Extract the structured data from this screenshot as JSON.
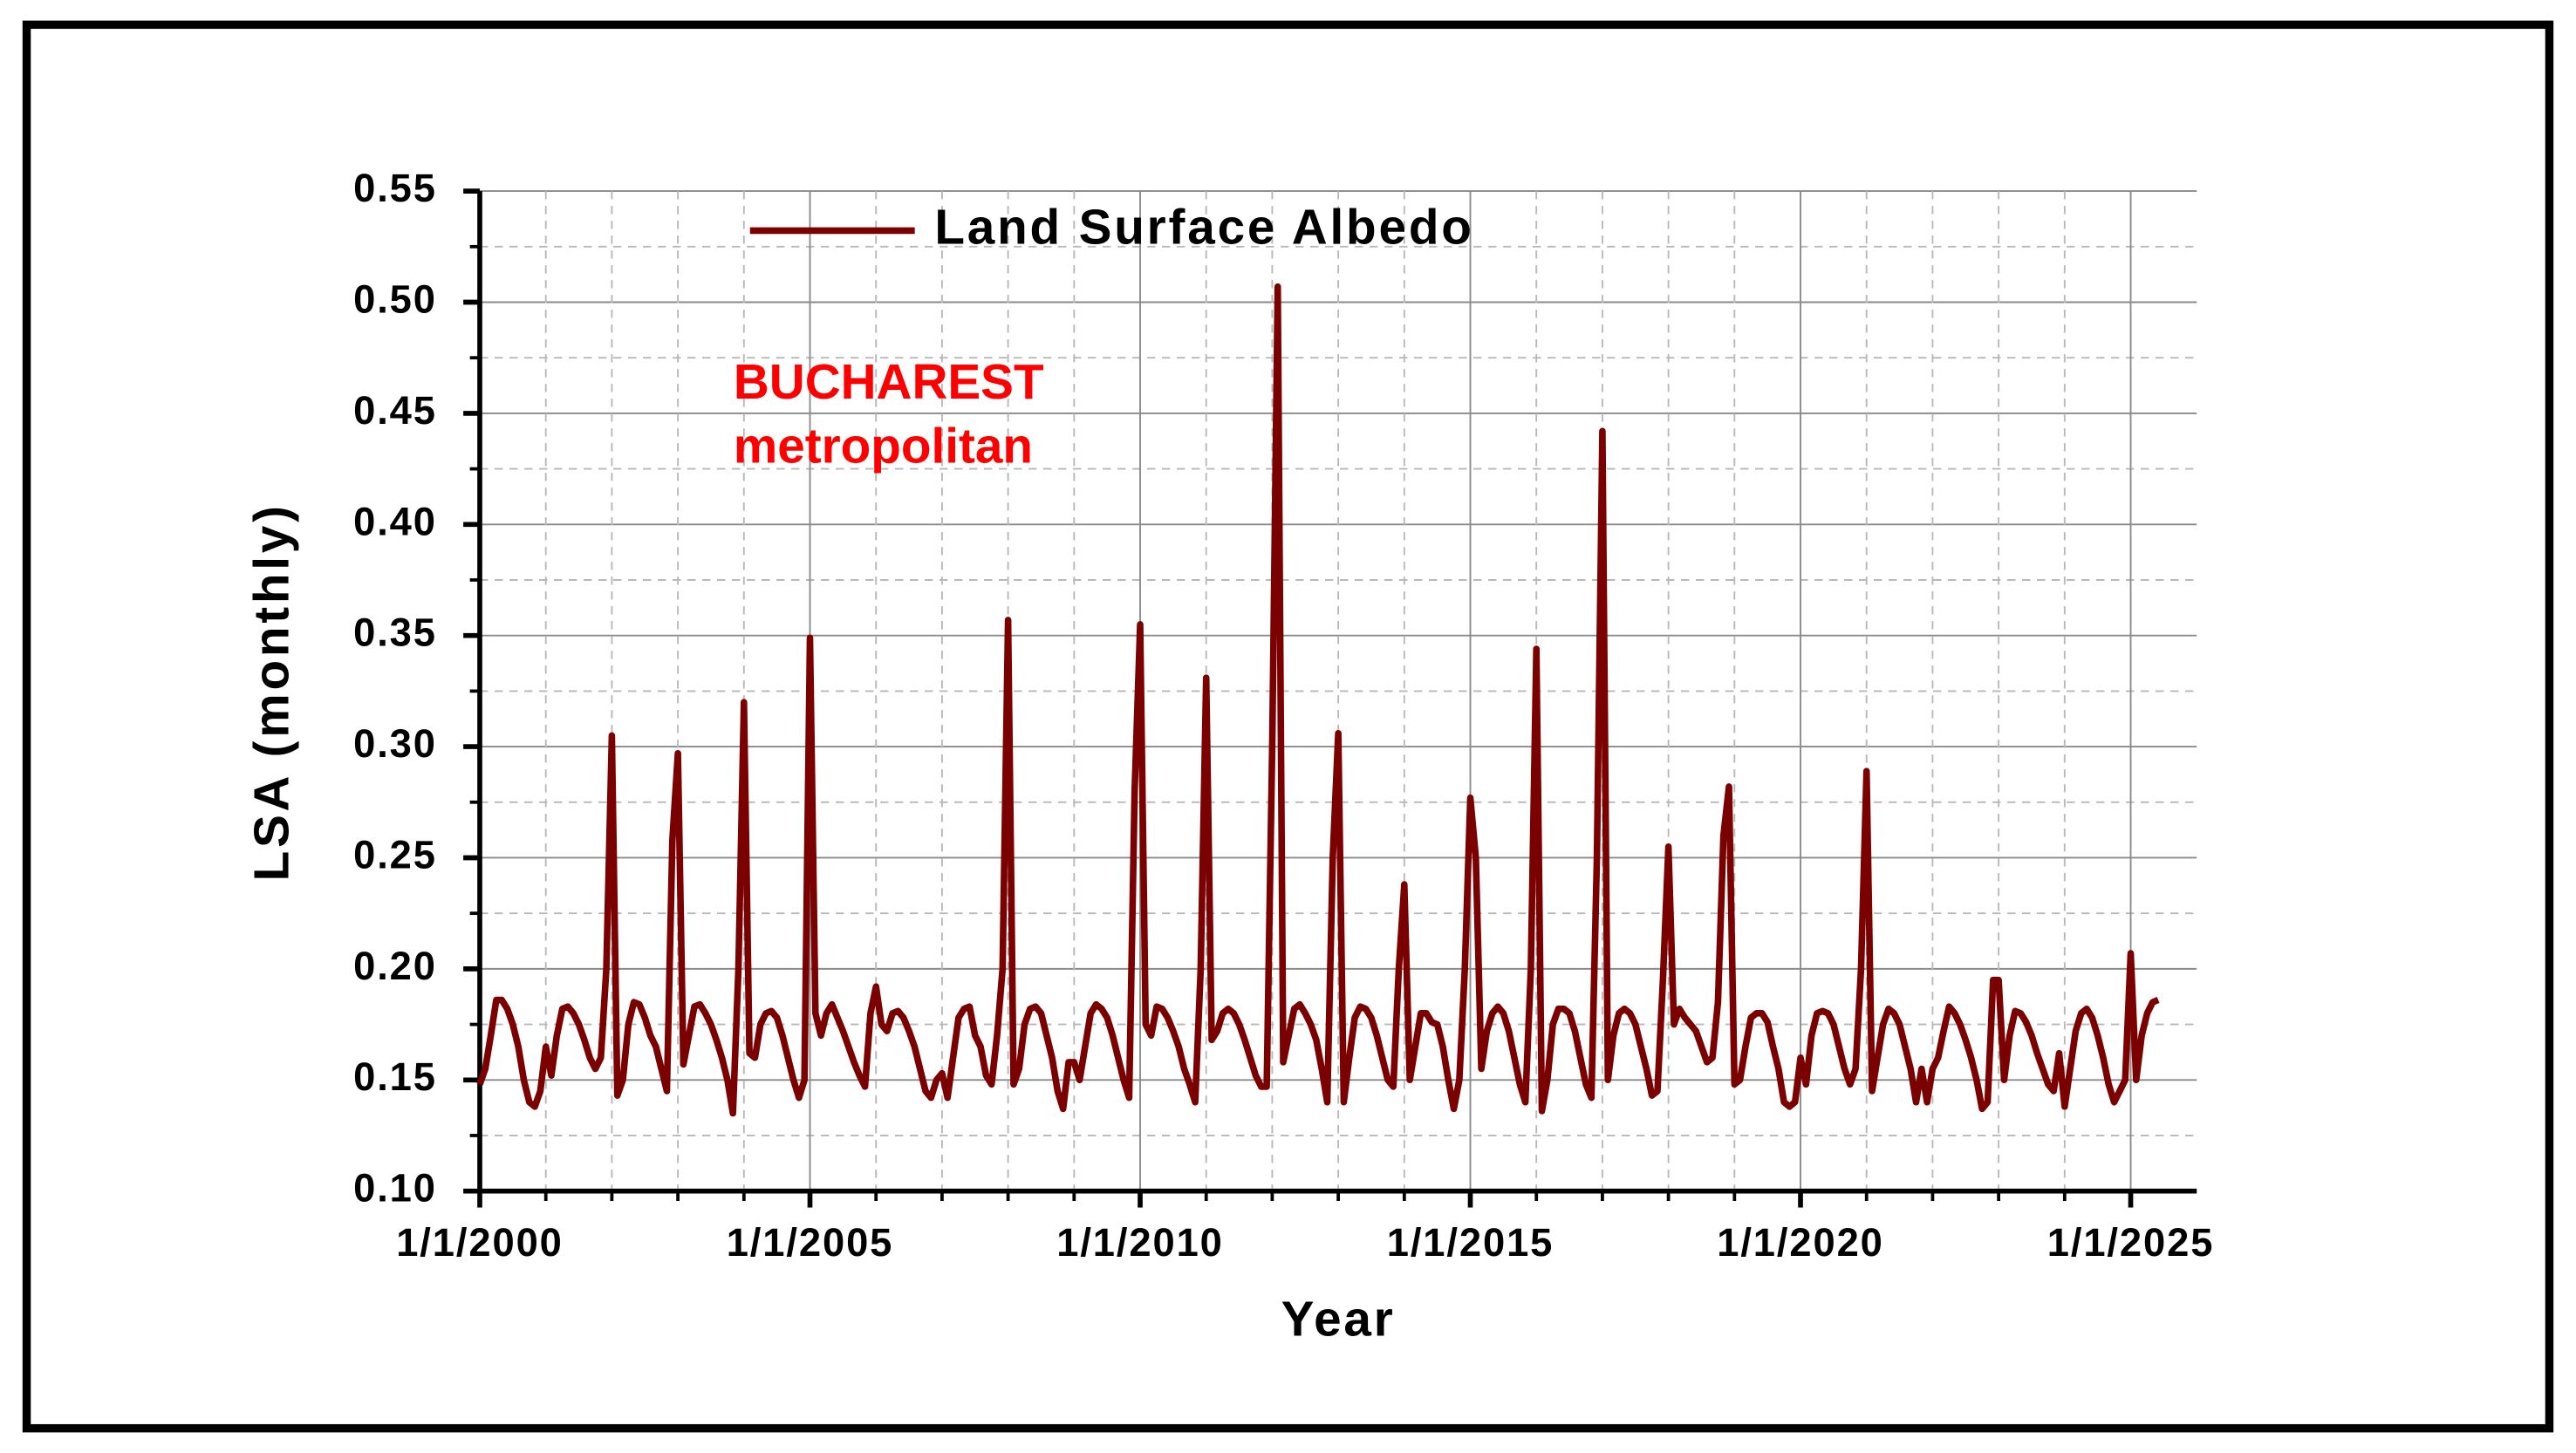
{
  "chart_data": {
    "type": "line",
    "y_label": "LSA (monthly)",
    "x_label": "Year",
    "annotation": [
      "BUCHAREST",
      "metropolitan"
    ],
    "annotation_color": "#ff0000",
    "xlim": [
      "1/1/2000",
      "1/1/2026"
    ],
    "xticks": [
      "1/1/2000",
      "1/1/2005",
      "1/1/2010",
      "1/1/2015",
      "1/1/2020",
      "1/1/2025"
    ],
    "x_minor_ticks": [
      "1/1/2001",
      "1/1/2002",
      "1/1/2003",
      "1/1/2004",
      "1/1/2006",
      "1/1/2007",
      "1/1/2008",
      "1/1/2009",
      "1/1/2011",
      "1/1/2012",
      "1/1/2013",
      "1/1/2014",
      "1/1/2016",
      "1/1/2017",
      "1/1/2018",
      "1/1/2019",
      "1/1/2021",
      "1/1/2022",
      "1/1/2023",
      "1/1/2024"
    ],
    "ylim": [
      0.1,
      0.55
    ],
    "yticks": [
      {
        "value": 0.1,
        "label": "0.10"
      },
      0.15,
      {
        "value": 0.2,
        "label": "0.20"
      },
      0.25,
      {
        "value": 0.3,
        "label": "0.30"
      },
      0.35,
      {
        "value": 0.4,
        "label": "0.40"
      },
      0.45,
      {
        "value": 0.5,
        "label": "0.50"
      },
      0.55
    ],
    "y_minor_ticks": [
      0.125,
      0.175,
      0.225,
      0.275,
      0.325,
      0.375,
      0.425,
      0.475,
      0.525
    ],
    "grid": true,
    "legend": "top",
    "x": [
      "1/1/2000",
      "2/1/2000",
      "3/1/2000",
      "4/1/2000",
      "5/1/2000",
      "6/1/2000",
      "7/1/2000",
      "8/1/2000",
      "9/1/2000",
      "10/1/2000",
      "11/1/2000",
      "12/1/2000",
      "1/1/2001",
      "2/1/2001",
      "3/1/2001",
      "4/1/2001",
      "5/1/2001",
      "6/1/2001",
      "7/1/2001",
      "8/1/2001",
      "9/1/2001",
      "10/1/2001",
      "11/1/2001",
      "12/1/2001",
      "1/1/2002",
      "2/1/2002",
      "3/1/2002",
      "4/1/2002",
      "5/1/2002",
      "6/1/2002",
      "7/1/2002",
      "8/1/2002",
      "9/1/2002",
      "10/1/2002",
      "11/1/2002",
      "12/1/2002",
      "1/1/2003",
      "2/1/2003",
      "3/1/2003",
      "4/1/2003",
      "5/1/2003",
      "6/1/2003",
      "7/1/2003",
      "8/1/2003",
      "9/1/2003",
      "10/1/2003",
      "11/1/2003",
      "12/1/2003",
      "1/1/2004",
      "2/1/2004",
      "3/1/2004",
      "4/1/2004",
      "5/1/2004",
      "6/1/2004",
      "7/1/2004",
      "8/1/2004",
      "9/1/2004",
      "10/1/2004",
      "11/1/2004",
      "12/1/2004",
      "1/1/2005",
      "2/1/2005",
      "3/1/2005",
      "4/1/2005",
      "5/1/2005",
      "6/1/2005",
      "7/1/2005",
      "8/1/2005",
      "9/1/2005",
      "10/1/2005",
      "11/1/2005",
      "12/1/2005",
      "1/1/2006",
      "2/1/2006",
      "3/1/2006",
      "4/1/2006",
      "5/1/2006",
      "6/1/2006",
      "7/1/2006",
      "8/1/2006",
      "9/1/2006",
      "10/1/2006",
      "11/1/2006",
      "12/1/2006",
      "1/1/2007",
      "2/1/2007",
      "3/1/2007",
      "4/1/2007",
      "5/1/2007",
      "6/1/2007",
      "7/1/2007",
      "8/1/2007",
      "9/1/2007",
      "10/1/2007",
      "11/1/2007",
      "12/1/2007",
      "1/1/2008",
      "2/1/2008",
      "3/1/2008",
      "4/1/2008",
      "5/1/2008",
      "6/1/2008",
      "7/1/2008",
      "8/1/2008",
      "9/1/2008",
      "10/1/2008",
      "11/1/2008",
      "12/1/2008",
      "1/1/2009",
      "2/1/2009",
      "3/1/2009",
      "4/1/2009",
      "5/1/2009",
      "6/1/2009",
      "7/1/2009",
      "8/1/2009",
      "9/1/2009",
      "10/1/2009",
      "11/1/2009",
      "12/1/2009",
      "1/1/2010",
      "2/1/2010",
      "3/1/2010",
      "4/1/2010",
      "5/1/2010",
      "6/1/2010",
      "7/1/2010",
      "8/1/2010",
      "9/1/2010",
      "10/1/2010",
      "11/1/2010",
      "12/1/2010",
      "1/1/2011",
      "2/1/2011",
      "3/1/2011",
      "4/1/2011",
      "5/1/2011",
      "6/1/2011",
      "7/1/2011",
      "8/1/2011",
      "9/1/2011",
      "10/1/2011",
      "11/1/2011",
      "12/1/2011",
      "1/1/2012",
      "2/1/2012",
      "3/1/2012",
      "4/1/2012",
      "5/1/2012",
      "6/1/2012",
      "7/1/2012",
      "8/1/2012",
      "9/1/2012",
      "10/1/2012",
      "11/1/2012",
      "12/1/2012",
      "1/1/2013",
      "2/1/2013",
      "3/1/2013",
      "4/1/2013",
      "5/1/2013",
      "6/1/2013",
      "7/1/2013",
      "8/1/2013",
      "9/1/2013",
      "10/1/2013",
      "11/1/2013",
      "12/1/2013",
      "1/1/2014",
      "2/1/2014",
      "3/1/2014",
      "4/1/2014",
      "5/1/2014",
      "6/1/2014",
      "7/1/2014",
      "8/1/2014",
      "9/1/2014",
      "10/1/2014",
      "11/1/2014",
      "12/1/2014",
      "1/1/2015",
      "2/1/2015",
      "3/1/2015",
      "4/1/2015",
      "5/1/2015",
      "6/1/2015",
      "7/1/2015",
      "8/1/2015",
      "9/1/2015",
      "10/1/2015",
      "11/1/2015",
      "12/1/2015",
      "1/1/2016",
      "2/1/2016",
      "3/1/2016",
      "4/1/2016",
      "5/1/2016",
      "6/1/2016",
      "7/1/2016",
      "8/1/2016",
      "9/1/2016",
      "10/1/2016",
      "11/1/2016",
      "12/1/2016",
      "1/1/2017",
      "2/1/2017",
      "3/1/2017",
      "4/1/2017",
      "5/1/2017",
      "6/1/2017",
      "7/1/2017",
      "8/1/2017",
      "9/1/2017",
      "10/1/2017",
      "11/1/2017",
      "12/1/2017",
      "1/1/2018",
      "2/1/2018",
      "3/1/2018",
      "4/1/2018",
      "5/1/2018",
      "6/1/2018",
      "7/1/2018",
      "8/1/2018",
      "9/1/2018",
      "10/1/2018",
      "11/1/2018",
      "12/1/2018",
      "1/1/2019",
      "2/1/2019",
      "3/1/2019",
      "4/1/2019",
      "5/1/2019",
      "6/1/2019",
      "7/1/2019",
      "8/1/2019",
      "9/1/2019",
      "10/1/2019",
      "11/1/2019",
      "12/1/2019",
      "1/1/2020",
      "2/1/2020",
      "3/1/2020",
      "4/1/2020",
      "5/1/2020",
      "6/1/2020",
      "7/1/2020",
      "8/1/2020",
      "9/1/2020",
      "10/1/2020",
      "11/1/2020",
      "12/1/2020",
      "1/1/2021",
      "2/1/2021",
      "3/1/2021",
      "4/1/2021",
      "5/1/2021",
      "6/1/2021",
      "7/1/2021",
      "8/1/2021",
      "9/1/2021",
      "10/1/2021",
      "11/1/2021",
      "12/1/2021",
      "1/1/2022",
      "2/1/2022",
      "3/1/2022",
      "4/1/2022",
      "5/1/2022",
      "6/1/2022",
      "7/1/2022",
      "8/1/2022",
      "9/1/2022",
      "10/1/2022",
      "11/1/2022",
      "12/1/2022",
      "1/1/2023",
      "2/1/2023",
      "3/1/2023",
      "4/1/2023",
      "5/1/2023",
      "6/1/2023",
      "7/1/2023",
      "8/1/2023",
      "9/1/2023",
      "10/1/2023",
      "11/1/2023",
      "12/1/2023",
      "1/1/2024",
      "2/1/2024",
      "3/1/2024",
      "4/1/2024",
      "5/1/2024",
      "6/1/2024",
      "7/1/2024",
      "8/1/2024",
      "9/1/2024",
      "10/1/2024",
      "11/1/2024",
      "12/1/2024",
      "1/1/2025",
      "2/1/2025",
      "3/1/2025",
      "4/1/2025",
      "5/1/2025",
      "6/1/2025"
    ],
    "series": [
      {
        "name": "Land Surface Albedo",
        "color": "#7b0000",
        "values": [
          0.148,
          0.155,
          0.17,
          0.186,
          0.186,
          0.182,
          0.175,
          0.165,
          0.15,
          0.14,
          0.138,
          0.145,
          0.165,
          0.152,
          0.17,
          0.182,
          0.183,
          0.18,
          0.175,
          0.168,
          0.16,
          0.155,
          0.16,
          0.2,
          0.305,
          0.143,
          0.15,
          0.175,
          0.185,
          0.184,
          0.178,
          0.17,
          0.165,
          0.155,
          0.145,
          0.258,
          0.297,
          0.157,
          0.17,
          0.183,
          0.184,
          0.18,
          0.175,
          0.168,
          0.16,
          0.15,
          0.135,
          0.2,
          0.32,
          0.162,
          0.16,
          0.175,
          0.18,
          0.181,
          0.178,
          0.17,
          0.16,
          0.15,
          0.142,
          0.15,
          0.349,
          0.18,
          0.17,
          0.18,
          0.184,
          0.178,
          0.172,
          0.165,
          0.158,
          0.152,
          0.147,
          0.18,
          0.192,
          0.175,
          0.172,
          0.18,
          0.181,
          0.178,
          0.172,
          0.165,
          0.155,
          0.145,
          0.142,
          0.15,
          0.153,
          0.142,
          0.16,
          0.178,
          0.182,
          0.183,
          0.17,
          0.165,
          0.152,
          0.148,
          0.17,
          0.2,
          0.357,
          0.148,
          0.155,
          0.175,
          0.182,
          0.183,
          0.18,
          0.17,
          0.16,
          0.145,
          0.137,
          0.158,
          0.158,
          0.15,
          0.165,
          0.18,
          0.184,
          0.182,
          0.178,
          0.17,
          0.16,
          0.15,
          0.142,
          0.28,
          0.355,
          0.175,
          0.17,
          0.183,
          0.182,
          0.178,
          0.172,
          0.165,
          0.155,
          0.148,
          0.14,
          0.2,
          0.331,
          0.168,
          0.172,
          0.18,
          0.182,
          0.18,
          0.175,
          0.168,
          0.16,
          0.152,
          0.147,
          0.147,
          0.3,
          0.507,
          0.158,
          0.17,
          0.182,
          0.184,
          0.18,
          0.175,
          0.168,
          0.155,
          0.14,
          0.25,
          0.306,
          0.14,
          0.16,
          0.178,
          0.183,
          0.182,
          0.178,
          0.17,
          0.16,
          0.15,
          0.147,
          0.2,
          0.238,
          0.15,
          0.165,
          0.18,
          0.18,
          0.176,
          0.175,
          0.165,
          0.15,
          0.137,
          0.15,
          0.2,
          0.277,
          0.25,
          0.155,
          0.172,
          0.18,
          0.183,
          0.18,
          0.172,
          0.16,
          0.148,
          0.14,
          0.2,
          0.344,
          0.136,
          0.15,
          0.175,
          0.182,
          0.182,
          0.18,
          0.172,
          0.16,
          0.148,
          0.142,
          0.25,
          0.442,
          0.15,
          0.17,
          0.18,
          0.182,
          0.18,
          0.175,
          0.165,
          0.155,
          0.143,
          0.145,
          0.195,
          0.255,
          0.175,
          0.182,
          0.178,
          0.175,
          0.172,
          0.165,
          0.158,
          0.16,
          0.185,
          0.26,
          0.282,
          0.148,
          0.15,
          0.165,
          0.178,
          0.18,
          0.18,
          0.176,
          0.165,
          0.155,
          0.14,
          0.138,
          0.14,
          0.16,
          0.148,
          0.17,
          0.18,
          0.181,
          0.18,
          0.175,
          0.165,
          0.155,
          0.148,
          0.155,
          0.2,
          0.289,
          0.145,
          0.16,
          0.175,
          0.182,
          0.18,
          0.175,
          0.165,
          0.155,
          0.14,
          0.155,
          0.14,
          0.155,
          0.16,
          0.172,
          0.183,
          0.18,
          0.175,
          0.168,
          0.16,
          0.15,
          0.137,
          0.14,
          0.195,
          0.195,
          0.15,
          0.17,
          0.181,
          0.18,
          0.176,
          0.17,
          0.162,
          0.155,
          0.148,
          0.145,
          0.162,
          0.138,
          0.155,
          0.172,
          0.18,
          0.182,
          0.178,
          0.17,
          0.16,
          0.148,
          0.14,
          0.145,
          0.15,
          0.207,
          0.15,
          0.17,
          0.18,
          0.185,
          0.186
        ]
      }
    ]
  }
}
